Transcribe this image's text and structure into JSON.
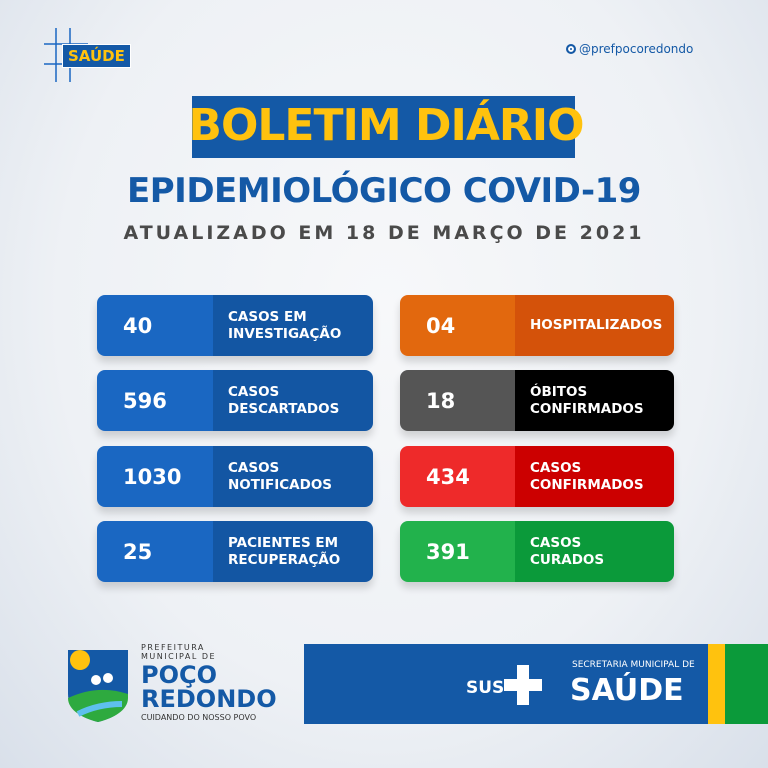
{
  "header": {
    "badge": "SAÚDE",
    "social_handle": "@prefpocoredondo"
  },
  "title": {
    "line1": "BOLETIM DIÁRIO",
    "line2": "EPIDEMIOLÓGICO COVID-19",
    "updated": "ATUALIZADO EM 18 DE MARÇO DE 2021"
  },
  "stats_left": [
    {
      "value": "40",
      "label1": "CASOS EM",
      "label2": "INVESTIGAÇÃO"
    },
    {
      "value": "596",
      "label1": "CASOS",
      "label2": "DESCARTADOS"
    },
    {
      "value": "1030",
      "label1": "CASOS",
      "label2": "NOTIFICADOS"
    },
    {
      "value": "25",
      "label1": "PACIENTES EM",
      "label2": "RECUPERAÇÃO"
    }
  ],
  "stats_right": [
    {
      "value": "04",
      "label1": "HOSPITALIZADOS",
      "label2": "",
      "num_color": "#e2680e",
      "label_color": "#d4520a"
    },
    {
      "value": "18",
      "label1": "ÓBITOS",
      "label2": "CONFIRMADOS",
      "num_color": "#555555",
      "label_color": "#000000"
    },
    {
      "value": "434",
      "label1": "CASOS",
      "label2": "CONFIRMADOS",
      "num_color": "#ee2a2a",
      "label_color": "#cc0000"
    },
    {
      "value": "391",
      "label1": "CASOS",
      "label2": "CURADOS",
      "num_color": "#22b24c",
      "label_color": "#0b9a3a"
    }
  ],
  "footer": {
    "pref_line1": "PREFEITURA",
    "pref_line2": "MUNICIPAL DE",
    "city1": "POÇO",
    "city2": "REDONDO",
    "slogan": "CUIDANDO DO NOSSO POVO",
    "sus": "SUS",
    "secretaria": "SECRETARIA MUNICIPAL DE",
    "saude": "SAÚDE"
  },
  "colors": {
    "brand_blue": "#1459a6",
    "brand_yellow": "#ffc20e",
    "brand_green": "#0b9a3a"
  }
}
